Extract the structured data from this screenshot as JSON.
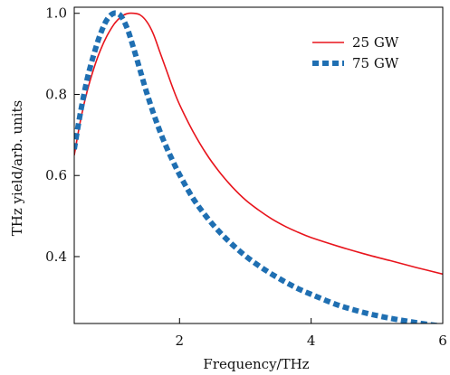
{
  "chart_data": {
    "type": "line",
    "xlabel": "Frequency/THz",
    "ylabel": "THz yield/arb. units",
    "xlim": [
      0.4,
      6.0
    ],
    "ylim": [
      0.235,
      1.015
    ],
    "xticks": [
      2,
      4,
      6
    ],
    "yticks": [
      0.4,
      0.6,
      0.8,
      1.0
    ],
    "xtick_labels": [
      "2",
      "4",
      "6"
    ],
    "ytick_labels": [
      "0.4",
      "0.6",
      "0.8",
      "1.0"
    ],
    "grid": false,
    "legend_position": "top-right",
    "series": [
      {
        "name": "25 GW",
        "color": "#e8141c",
        "style": "solid",
        "x": [
          0.4,
          0.5,
          0.6,
          0.7,
          0.8,
          0.9,
          1.0,
          1.1,
          1.2,
          1.3,
          1.4,
          1.5,
          1.6,
          1.7,
          1.8,
          1.9,
          2.0,
          2.2,
          2.4,
          2.6,
          2.8,
          3.0,
          3.2,
          3.4,
          3.6,
          3.8,
          4.0,
          4.4,
          4.8,
          5.2,
          5.6,
          6.0
        ],
        "y": [
          0.65,
          0.74,
          0.81,
          0.865,
          0.91,
          0.945,
          0.972,
          0.99,
          0.999,
          1.0,
          0.996,
          0.98,
          0.95,
          0.905,
          0.86,
          0.815,
          0.775,
          0.71,
          0.655,
          0.61,
          0.572,
          0.54,
          0.515,
          0.493,
          0.475,
          0.46,
          0.447,
          0.426,
          0.407,
          0.39,
          0.373,
          0.357
        ]
      },
      {
        "name": "75 GW",
        "color": "#1f6fb2",
        "style": "dashed",
        "x": [
          0.4,
          0.5,
          0.6,
          0.7,
          0.8,
          0.9,
          1.0,
          1.1,
          1.2,
          1.3,
          1.4,
          1.5,
          1.6,
          1.7,
          1.8,
          1.9,
          2.0,
          2.2,
          2.4,
          2.6,
          2.8,
          3.0,
          3.2,
          3.4,
          3.6,
          3.8,
          4.0,
          4.4,
          4.8,
          5.2,
          5.6,
          6.0
        ],
        "y": [
          0.665,
          0.76,
          0.84,
          0.9,
          0.95,
          0.985,
          1.0,
          0.995,
          0.965,
          0.915,
          0.86,
          0.805,
          0.755,
          0.71,
          0.67,
          0.635,
          0.602,
          0.545,
          0.5,
          0.462,
          0.43,
          0.402,
          0.378,
          0.357,
          0.338,
          0.321,
          0.307,
          0.281,
          0.262,
          0.248,
          0.237,
          0.228
        ]
      }
    ]
  }
}
